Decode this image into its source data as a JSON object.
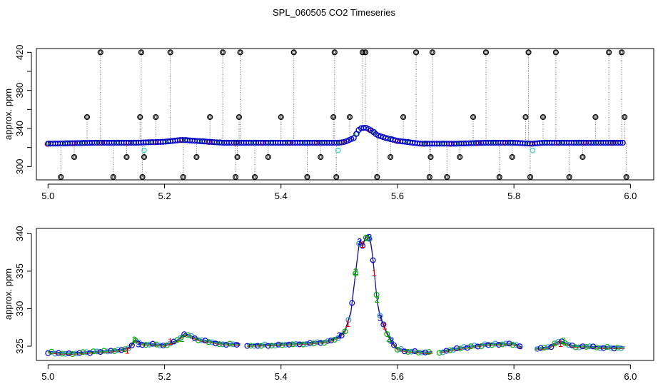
{
  "figure_title": "SPL_060505  CO2 Timeseries",
  "chart_data": [
    {
      "type": "scatter",
      "panel": "top",
      "title": "",
      "xlabel": "",
      "ylabel": "approx. ppm",
      "xlim": [
        4.98,
        6.04
      ],
      "ylim": [
        286,
        424
      ],
      "xticks": [
        5.0,
        5.2,
        5.4,
        5.6,
        5.8,
        6.0
      ],
      "xtick_labels": [
        "5.0",
        "5.2",
        "5.4",
        "5.6",
        "5.8",
        "6.0"
      ],
      "yticks": [
        300,
        340,
        380,
        420
      ],
      "ytick_labels": [
        "300",
        "340",
        "380",
        "420"
      ],
      "ytick_minor": [
        320,
        360,
        400
      ],
      "baseline": {
        "color": "#0000cc",
        "x": [
          5.0,
          5.08,
          5.15,
          5.2,
          5.23,
          5.3,
          5.33,
          5.4,
          5.48,
          5.5,
          5.51,
          5.525,
          5.535,
          5.545,
          5.555,
          5.565,
          5.58,
          5.6,
          5.64,
          5.66,
          5.7,
          5.75,
          5.8,
          5.83,
          5.85,
          5.9,
          5.99
        ],
        "y": [
          324,
          325,
          325,
          326,
          328,
          325,
          325,
          325,
          325,
          325,
          326,
          330,
          340,
          341,
          338,
          333,
          330,
          327,
          324,
          324,
          324,
          325,
          325,
          324,
          325,
          325,
          325
        ]
      },
      "outliers": {
        "color": "#000000",
        "x": [
          5.022,
          5.045,
          5.067,
          5.09,
          5.112,
          5.135,
          5.158,
          5.16,
          5.162,
          5.165,
          5.185,
          5.21,
          5.232,
          5.255,
          5.278,
          5.3,
          5.322,
          5.325,
          5.328,
          5.33,
          5.355,
          5.378,
          5.4,
          5.422,
          5.445,
          5.468,
          5.49,
          5.492,
          5.495,
          5.518,
          5.54,
          5.545,
          5.565,
          5.588,
          5.61,
          5.632,
          5.655,
          5.657,
          5.66,
          5.685,
          5.707,
          5.73,
          5.752,
          5.775,
          5.797,
          5.82,
          5.825,
          5.828,
          5.85,
          5.872,
          5.895,
          5.918,
          5.94,
          5.963,
          5.985,
          5.99,
          5.993
        ],
        "y": [
          289,
          310,
          352,
          420,
          289,
          310,
          352,
          420,
          289,
          310,
          352,
          420,
          289,
          310,
          352,
          420,
          289,
          310,
          352,
          420,
          289,
          310,
          352,
          420,
          289,
          310,
          352,
          420,
          289,
          352,
          420,
          420,
          289,
          310,
          352,
          420,
          289,
          310,
          420,
          289,
          310,
          352,
          420,
          289,
          310,
          352,
          420,
          289,
          352,
          420,
          289,
          310,
          352,
          420,
          420,
          352,
          289
        ]
      },
      "highlights": {
        "color": "#33cccc",
        "x": [
          5.165,
          5.498,
          5.832
        ],
        "y": [
          317,
          317,
          317
        ]
      }
    },
    {
      "type": "scatter",
      "panel": "bottom",
      "title": "",
      "xlabel": "",
      "ylabel": "approx. ppm",
      "xlim": [
        4.98,
        6.04
      ],
      "ylim": [
        323.1,
        340.7
      ],
      "xticks": [
        5.0,
        5.2,
        5.4,
        5.6,
        5.8,
        6.0
      ],
      "xtick_labels": [
        "5.0",
        "5.2",
        "5.4",
        "5.6",
        "5.8",
        "6.0"
      ],
      "yticks": [
        325,
        330,
        335,
        340
      ],
      "ytick_labels": [
        "325",
        "330",
        "335",
        "340"
      ],
      "series": [
        {
          "name": "1",
          "color": "#dd0000"
        },
        {
          "name": "2",
          "color": "#00aa00"
        },
        {
          "name": "3",
          "color": "#0000cc"
        }
      ],
      "gaps": [
        [
          5.33,
          5.34
        ],
        [
          5.66,
          5.67
        ],
        [
          5.815,
          5.835
        ]
      ],
      "trace": {
        "x": [
          5.0,
          5.03,
          5.06,
          5.1,
          5.13,
          5.14,
          5.15,
          5.16,
          5.2,
          5.22,
          5.235,
          5.26,
          5.3,
          5.33,
          5.34,
          5.4,
          5.45,
          5.48,
          5.5,
          5.51,
          5.52,
          5.53,
          5.535,
          5.54,
          5.545,
          5.55,
          5.555,
          5.56,
          5.565,
          5.57,
          5.575,
          5.58,
          5.59,
          5.6,
          5.62,
          5.65,
          5.67,
          5.7,
          5.75,
          5.8,
          5.815,
          5.835,
          5.86,
          5.87,
          5.88,
          5.9,
          5.95,
          5.99
        ],
        "y": [
          324.2,
          324.0,
          324.1,
          324.3,
          324.5,
          324.8,
          325.8,
          325.3,
          325.1,
          325.6,
          326.6,
          325.8,
          325.3,
          325.2,
          325.1,
          325.2,
          325.4,
          325.6,
          326.2,
          327.0,
          329.5,
          336.0,
          339.2,
          338.3,
          339.5,
          339.8,
          338.5,
          335.0,
          331.0,
          329.0,
          328.0,
          327.0,
          325.5,
          324.6,
          324.3,
          324.1,
          324.2,
          324.6,
          325.2,
          325.3,
          324.7,
          324.6,
          324.8,
          325.3,
          325.6,
          325.0,
          324.8,
          324.8
        ]
      }
    }
  ]
}
